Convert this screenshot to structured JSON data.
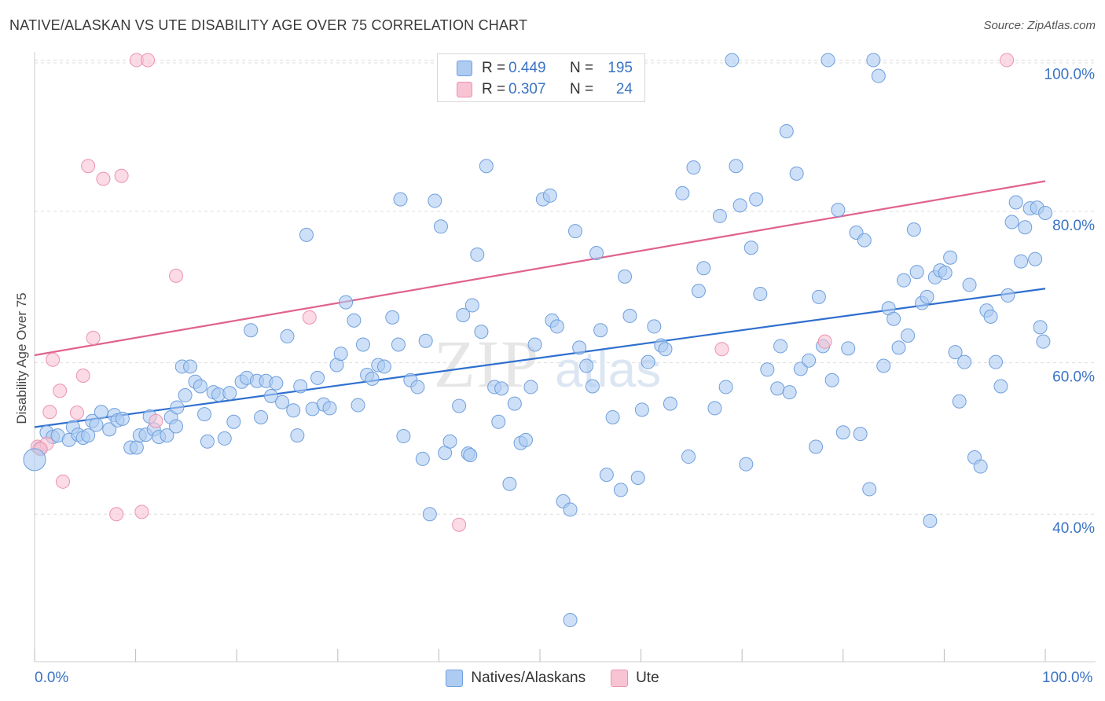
{
  "title": "NATIVE/ALASKAN VS UTE DISABILITY AGE OVER 75 CORRELATION CHART",
  "source": "Source: ZipAtlas.com",
  "watermark": {
    "zip": "ZIP",
    "atlas": "atlas"
  },
  "colors": {
    "blue_fill": "#aecbf2",
    "blue_stroke": "#6f9fdc",
    "blue_line": "#2f6fcf",
    "pink_fill": "#f8c3d3",
    "pink_stroke": "#ec93b0",
    "pink_line": "#e0628e",
    "axis_text": "#3b73c4",
    "grid": "#dddddd"
  },
  "stats": {
    "rows": [
      {
        "r_label": "R =",
        "r_value": "0.449",
        "n_label": "N =",
        "n_value": "195",
        "color": "#aecbf2",
        "border": "#6f9fdc"
      },
      {
        "r_label": "R =",
        "r_value": "0.307",
        "n_label": "N =",
        "n_value": "24",
        "color": "#f8c3d3",
        "border": "#ec93b0"
      }
    ]
  },
  "legend": {
    "items": [
      {
        "label": "Natives/Alaskans",
        "color": "#aecbf2",
        "border": "#6f9fdc"
      },
      {
        "label": "Ute",
        "color": "#f8c3d3",
        "border": "#ec93b0"
      }
    ]
  },
  "chart_data": {
    "type": "scatter",
    "title": "NATIVE/ALASKAN VS UTE DISABILITY AGE OVER 75 CORRELATION CHART",
    "xlabel": "",
    "ylabel": "Disability Age Over 75",
    "xlim": [
      0,
      100
    ],
    "ylim": [
      20.5,
      101.5
    ],
    "x_tick_labels": [
      "0.0%",
      "100.0%"
    ],
    "y_ticks": [
      40,
      60,
      80,
      100
    ],
    "y_tick_labels": [
      "40.0%",
      "60.0%",
      "80.0%",
      "100.0%"
    ],
    "grid": "horizontal dashed",
    "legend_position": "bottom-center",
    "series": [
      {
        "name": "Natives/Alaskans",
        "color": "#aecbf2",
        "trend": {
          "x": [
            0,
            100
          ],
          "y": [
            51.5,
            69.8
          ]
        },
        "points": [
          [
            0.5,
            48.7
          ],
          [
            1.2,
            50.8
          ],
          [
            1.8,
            50.2
          ],
          [
            2.3,
            50.4
          ],
          [
            3.4,
            49.8
          ],
          [
            3.8,
            51.5
          ],
          [
            4.3,
            50.5
          ],
          [
            4.8,
            50.1
          ],
          [
            5.3,
            50.4
          ],
          [
            5.7,
            52.3
          ],
          [
            6.1,
            51.8
          ],
          [
            6.6,
            53.5
          ],
          [
            7.4,
            51.2
          ],
          [
            7.9,
            53.1
          ],
          [
            8.2,
            52.4
          ],
          [
            8.7,
            52.6
          ],
          [
            9.5,
            48.8
          ],
          [
            10.1,
            48.8
          ],
          [
            10.4,
            50.4
          ],
          [
            11.0,
            50.5
          ],
          [
            11.4,
            52.9
          ],
          [
            11.8,
            51.2
          ],
          [
            12.3,
            50.2
          ],
          [
            13.1,
            50.4
          ],
          [
            13.5,
            52.8
          ],
          [
            14.1,
            54.1
          ],
          [
            14.6,
            59.5
          ],
          [
            14.9,
            55.7
          ],
          [
            15.4,
            59.5
          ],
          [
            15.9,
            57.5
          ],
          [
            16.4,
            56.9
          ],
          [
            16.8,
            53.2
          ],
          [
            17.1,
            49.6
          ],
          [
            17.7,
            56.1
          ],
          [
            18.2,
            55.8
          ],
          [
            18.8,
            50.0
          ],
          [
            19.3,
            56.0
          ],
          [
            19.7,
            52.2
          ],
          [
            20.5,
            57.5
          ],
          [
            21.0,
            58.0
          ],
          [
            21.4,
            64.3
          ],
          [
            22.0,
            57.6
          ],
          [
            22.4,
            52.8
          ],
          [
            22.9,
            57.6
          ],
          [
            23.4,
            55.6
          ],
          [
            23.9,
            57.3
          ],
          [
            24.5,
            54.8
          ],
          [
            25.0,
            63.5
          ],
          [
            25.6,
            53.7
          ],
          [
            26.0,
            50.4
          ],
          [
            26.3,
            56.9
          ],
          [
            26.9,
            76.9
          ],
          [
            27.5,
            53.9
          ],
          [
            28.0,
            58.0
          ],
          [
            28.6,
            54.5
          ],
          [
            29.2,
            54.0
          ],
          [
            29.9,
            59.7
          ],
          [
            30.3,
            61.2
          ],
          [
            30.8,
            68.0
          ],
          [
            31.6,
            65.6
          ],
          [
            32.0,
            54.4
          ],
          [
            32.5,
            62.4
          ],
          [
            32.9,
            58.4
          ],
          [
            33.4,
            57.9
          ],
          [
            34.0,
            59.7
          ],
          [
            34.6,
            59.5
          ],
          [
            35.4,
            66.0
          ],
          [
            36.0,
            62.4
          ],
          [
            36.5,
            50.3
          ],
          [
            37.2,
            57.7
          ],
          [
            37.9,
            56.8
          ],
          [
            38.4,
            47.3
          ],
          [
            38.7,
            62.9
          ],
          [
            39.1,
            40.0
          ],
          [
            39.6,
            81.4
          ],
          [
            40.2,
            78.0
          ],
          [
            40.6,
            48.1
          ],
          [
            41.1,
            49.6
          ],
          [
            42.0,
            54.3
          ],
          [
            42.4,
            66.3
          ],
          [
            42.9,
            48.0
          ],
          [
            43.3,
            67.6
          ],
          [
            43.8,
            74.3
          ],
          [
            44.2,
            64.1
          ],
          [
            44.7,
            86.0
          ],
          [
            45.5,
            56.8
          ],
          [
            45.9,
            52.2
          ],
          [
            46.2,
            56.6
          ],
          [
            47.0,
            44.0
          ],
          [
            47.5,
            54.6
          ],
          [
            48.1,
            49.4
          ],
          [
            48.6,
            49.8
          ],
          [
            49.1,
            56.8
          ],
          [
            49.5,
            62.4
          ],
          [
            50.3,
            81.6
          ],
          [
            51.0,
            82.1
          ],
          [
            51.2,
            65.6
          ],
          [
            51.7,
            64.8
          ],
          [
            52.3,
            41.7
          ],
          [
            53.0,
            40.6
          ],
          [
            53.5,
            77.4
          ],
          [
            53.9,
            62.0
          ],
          [
            54.6,
            59.6
          ],
          [
            55.2,
            56.9
          ],
          [
            55.6,
            74.5
          ],
          [
            56.0,
            64.3
          ],
          [
            56.6,
            45.2
          ],
          [
            57.2,
            52.8
          ],
          [
            58.0,
            43.2
          ],
          [
            58.4,
            71.4
          ],
          [
            58.9,
            66.2
          ],
          [
            59.7,
            44.8
          ],
          [
            60.1,
            53.8
          ],
          [
            60.7,
            60.1
          ],
          [
            61.3,
            64.8
          ],
          [
            62.0,
            62.3
          ],
          [
            62.4,
            61.8
          ],
          [
            62.9,
            54.6
          ],
          [
            64.1,
            82.4
          ],
          [
            64.7,
            47.6
          ],
          [
            65.2,
            85.8
          ],
          [
            65.7,
            69.5
          ],
          [
            66.2,
            72.5
          ],
          [
            67.3,
            54.0
          ],
          [
            67.8,
            79.4
          ],
          [
            68.4,
            56.8
          ],
          [
            69.0,
            100.0
          ],
          [
            69.4,
            86.0
          ],
          [
            69.8,
            80.8
          ],
          [
            70.4,
            46.6
          ],
          [
            70.9,
            75.2
          ],
          [
            71.4,
            81.6
          ],
          [
            71.8,
            69.1
          ],
          [
            72.5,
            59.1
          ],
          [
            73.5,
            56.6
          ],
          [
            73.8,
            62.2
          ],
          [
            74.4,
            90.6
          ],
          [
            74.7,
            56.1
          ],
          [
            75.4,
            85.0
          ],
          [
            75.8,
            59.2
          ],
          [
            76.6,
            60.3
          ],
          [
            77.3,
            48.9
          ],
          [
            77.6,
            68.7
          ],
          [
            78.0,
            62.2
          ],
          [
            78.5,
            100.0
          ],
          [
            78.9,
            57.7
          ],
          [
            79.5,
            80.2
          ],
          [
            80.0,
            50.8
          ],
          [
            80.5,
            61.9
          ],
          [
            81.3,
            77.2
          ],
          [
            81.7,
            50.6
          ],
          [
            82.1,
            76.2
          ],
          [
            82.6,
            43.3
          ],
          [
            83.0,
            100.0
          ],
          [
            83.5,
            97.9
          ],
          [
            84.0,
            59.6
          ],
          [
            84.5,
            67.2
          ],
          [
            85.0,
            65.8
          ],
          [
            85.5,
            62.0
          ],
          [
            86.0,
            70.9
          ],
          [
            86.4,
            63.6
          ],
          [
            87.0,
            77.6
          ],
          [
            87.3,
            72.0
          ],
          [
            87.8,
            67.9
          ],
          [
            88.3,
            68.7
          ],
          [
            88.6,
            39.1
          ],
          [
            89.1,
            71.3
          ],
          [
            89.6,
            72.2
          ],
          [
            90.1,
            71.9
          ],
          [
            90.6,
            73.9
          ],
          [
            91.1,
            61.4
          ],
          [
            91.5,
            54.9
          ],
          [
            92.0,
            60.1
          ],
          [
            92.5,
            70.3
          ],
          [
            93.0,
            47.5
          ],
          [
            93.6,
            46.3
          ],
          [
            94.2,
            66.9
          ],
          [
            94.6,
            66.1
          ],
          [
            95.1,
            60.1
          ],
          [
            95.6,
            56.9
          ],
          [
            96.3,
            68.9
          ],
          [
            96.7,
            78.6
          ],
          [
            97.1,
            81.2
          ],
          [
            97.6,
            73.4
          ],
          [
            98.0,
            77.9
          ],
          [
            98.5,
            80.4
          ],
          [
            99.0,
            73.7
          ],
          [
            99.2,
            80.5
          ],
          [
            99.5,
            64.7
          ],
          [
            99.8,
            62.8
          ],
          [
            100.0,
            79.8
          ],
          [
            43.1,
            47.8
          ],
          [
            36.2,
            81.6
          ],
          [
            14.0,
            51.6
          ],
          [
            53.0,
            26.0
          ]
        ]
      },
      {
        "name": "Ute",
        "color": "#f8c3d3",
        "trend": {
          "x": [
            0,
            100
          ],
          "y": [
            61.0,
            84.0
          ]
        },
        "points": [
          [
            0.3,
            48.9
          ],
          [
            1.2,
            49.3
          ],
          [
            1.5,
            53.5
          ],
          [
            1.8,
            60.4
          ],
          [
            2.5,
            56.3
          ],
          [
            2.8,
            44.3
          ],
          [
            4.2,
            53.4
          ],
          [
            4.8,
            58.3
          ],
          [
            5.3,
            86.0
          ],
          [
            5.8,
            63.3
          ],
          [
            6.8,
            84.3
          ],
          [
            8.1,
            40.0
          ],
          [
            8.6,
            84.7
          ],
          [
            10.1,
            100.0
          ],
          [
            10.6,
            40.3
          ],
          [
            11.2,
            100.0
          ],
          [
            12.0,
            52.3
          ],
          [
            14.0,
            71.5
          ],
          [
            27.2,
            66.0
          ],
          [
            42.0,
            38.6
          ],
          [
            68.0,
            61.8
          ],
          [
            78.2,
            62.8
          ],
          [
            96.2,
            100.0
          ],
          [
            0.6,
            48.6
          ]
        ]
      }
    ]
  }
}
